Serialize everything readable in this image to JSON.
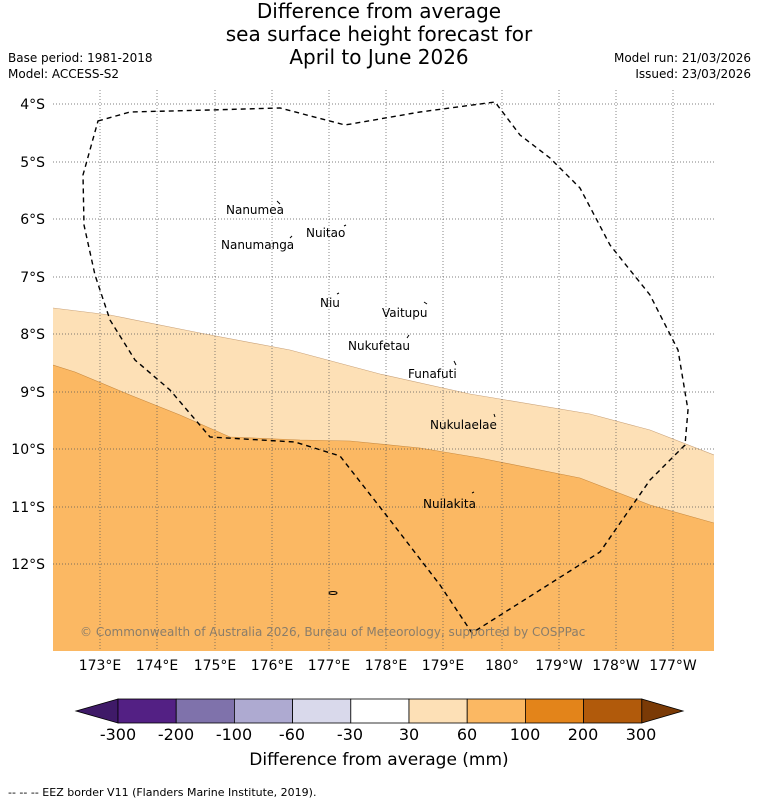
{
  "title": {
    "line1": "Difference from average",
    "line2": "sea surface height forecast for",
    "line3": "April to June 2026"
  },
  "meta_left": {
    "base_period": "Base period: 1981-2018",
    "model": "Model: ACCESS-S2"
  },
  "meta_right": {
    "model_run": "Model run: 21/03/2026",
    "issued": "Issued: 23/03/2026"
  },
  "map": {
    "lat_labels": [
      "4°S",
      "5°S",
      "6°S",
      "7°S",
      "8°S",
      "9°S",
      "10°S",
      "11°S",
      "12°S"
    ],
    "lon_labels": [
      "173°E",
      "174°E",
      "175°E",
      "176°E",
      "177°E",
      "178°E",
      "179°E",
      "180°",
      "179°W",
      "178°W",
      "177°W"
    ],
    "islands": [
      {
        "name": "Nanumea"
      },
      {
        "name": "Nuitao"
      },
      {
        "name": "Nanumanga"
      },
      {
        "name": "Niu"
      },
      {
        "name": "Vaitupu"
      },
      {
        "name": "Nukufetau"
      },
      {
        "name": "Funafuti"
      },
      {
        "name": "Nukulaelae"
      },
      {
        "name": "Nuilakita"
      }
    ],
    "copyright": "© Commonwealth of Australia 2026, Bureau of Meteorology, supported by COSPPac",
    "colors": {
      "band_30_60": "#fde0b6",
      "band_60_100": "#fbb863",
      "eez_line": "#000000",
      "grid": "#555555"
    }
  },
  "colorbar": {
    "title": "Difference from average (mm)",
    "tick_labels": [
      "-300",
      "-200",
      "-100",
      "-60",
      "-30",
      "30",
      "60",
      "100",
      "200",
      "300"
    ],
    "colors": [
      "#3f1a68",
      "#532084",
      "#7f72ab",
      "#aeaad1",
      "#d9d9eb",
      "#ffffff",
      "#fde0b6",
      "#fbb863",
      "#e3841a",
      "#b15a0b",
      "#7a3a06"
    ]
  },
  "footnote": "--  --  -- EEZ border V11 (Flanders Marine Institute, 2019)."
}
